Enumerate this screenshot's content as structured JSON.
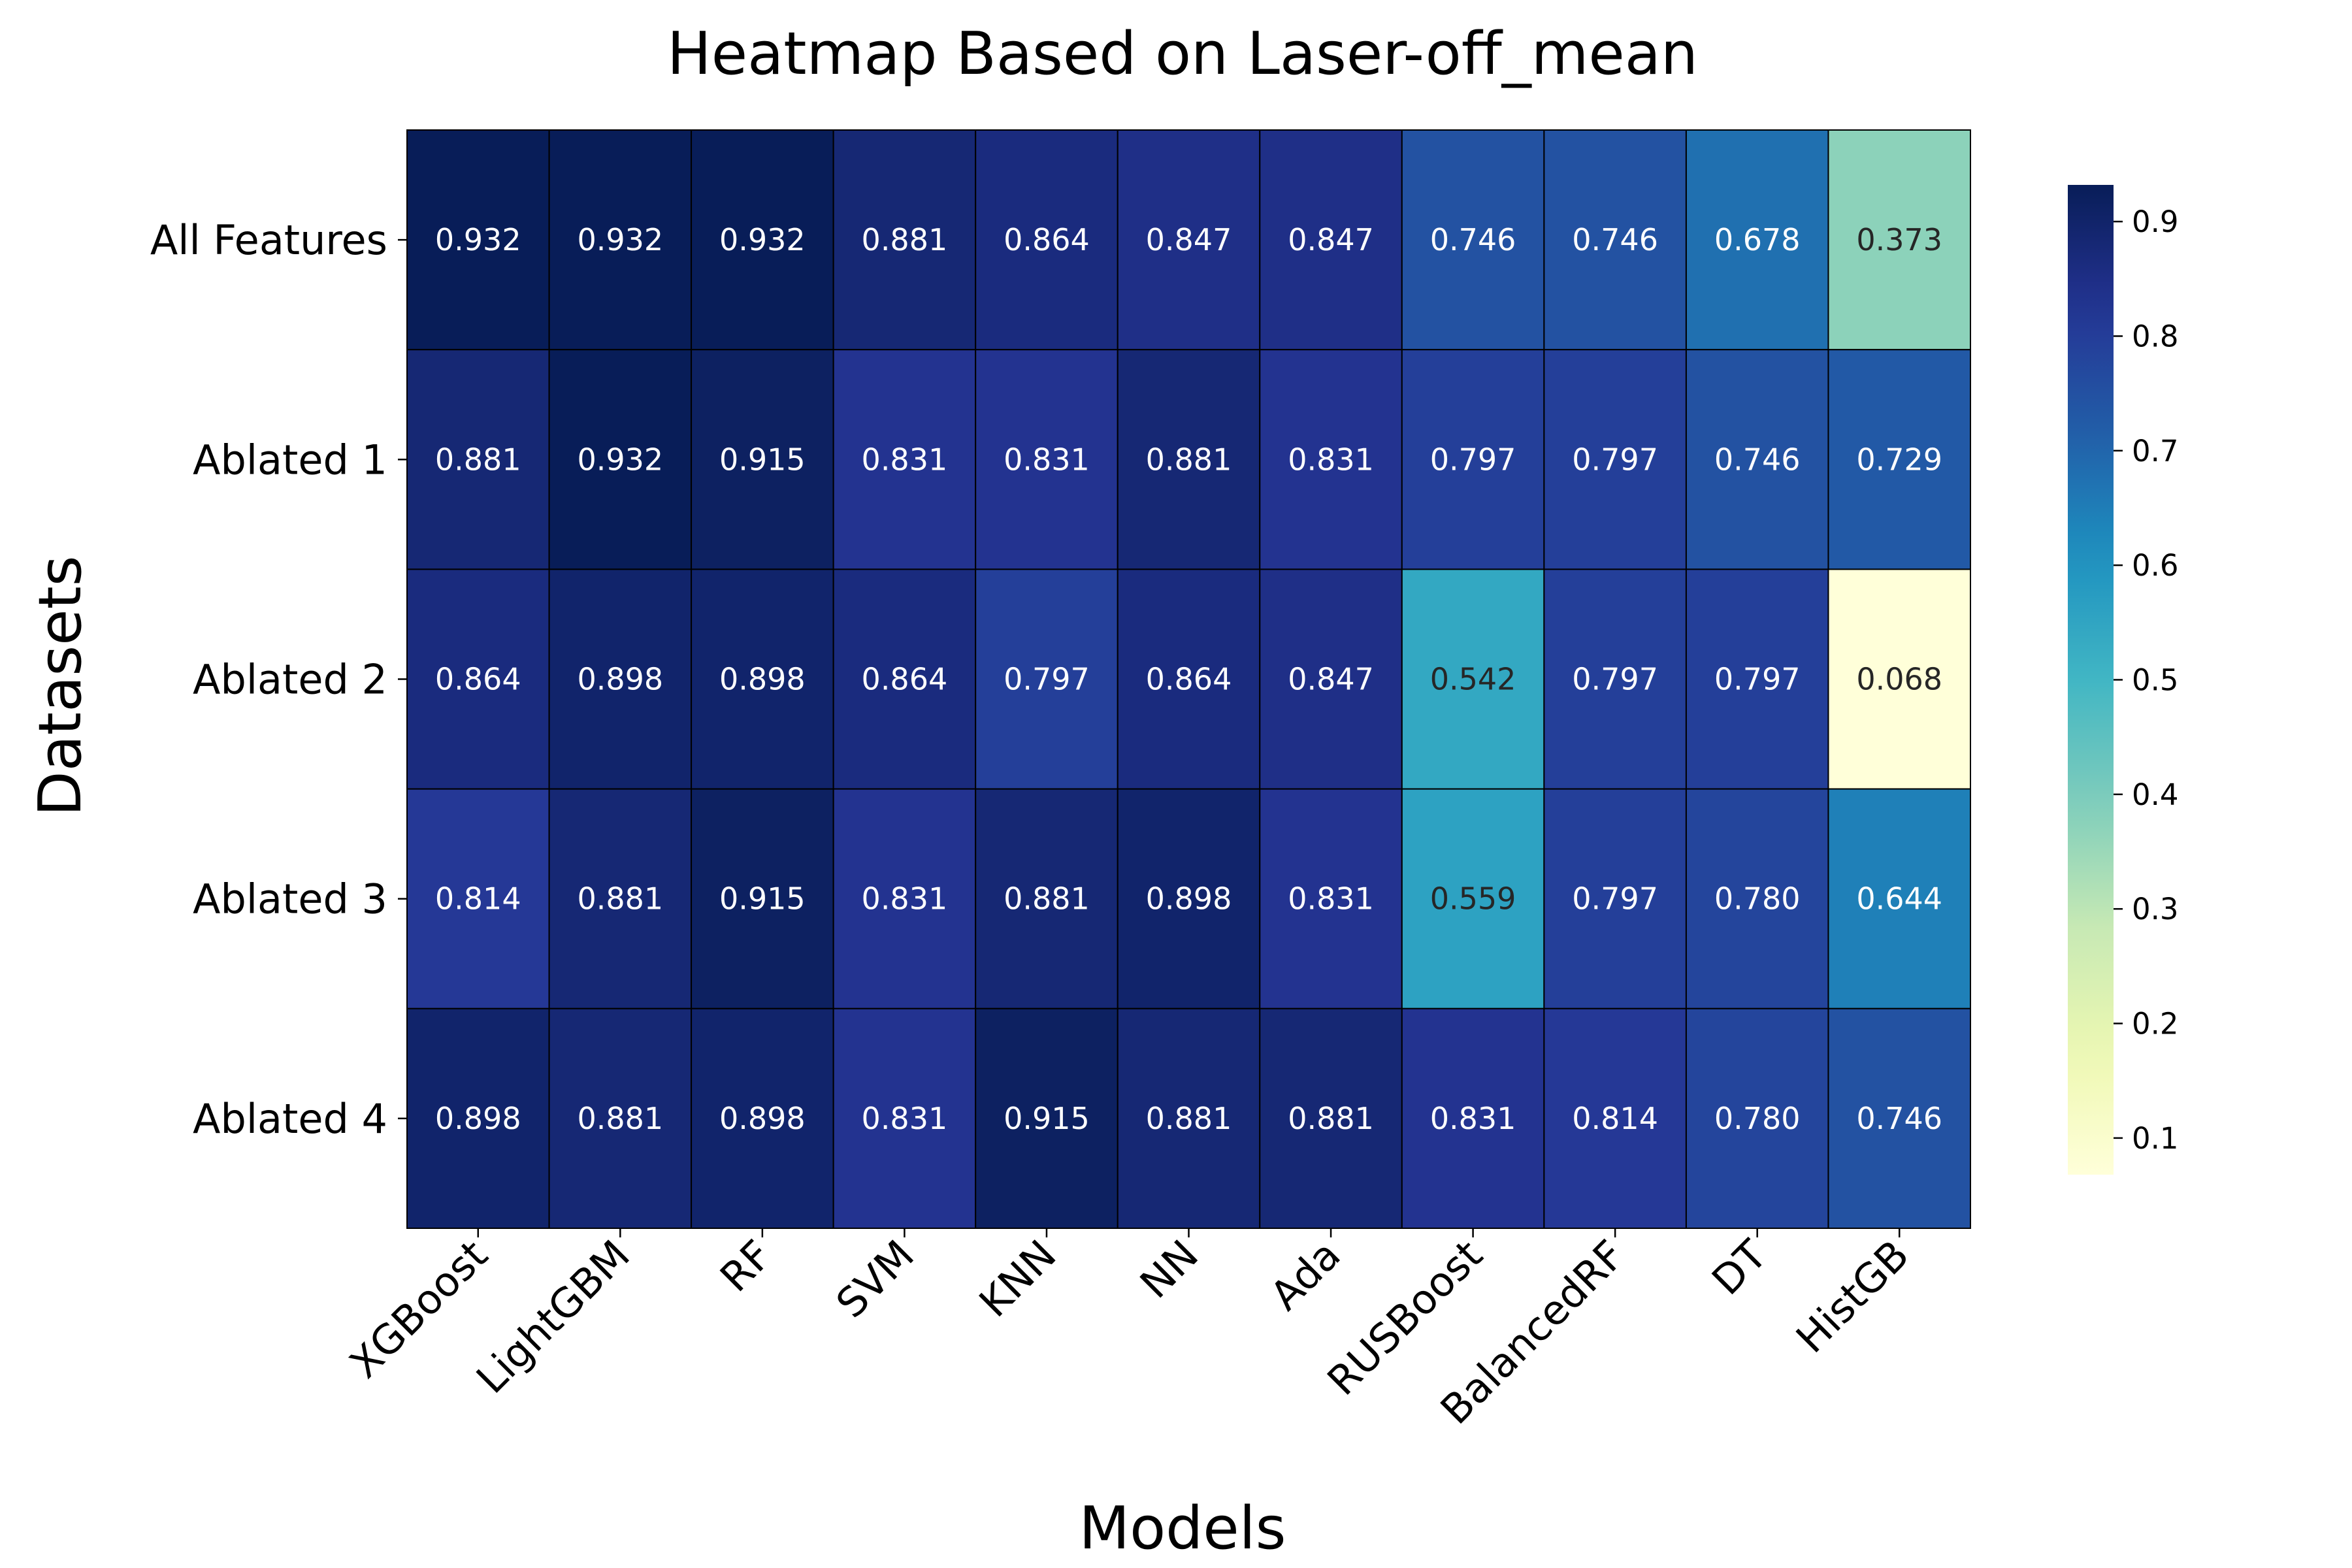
{
  "chart_data": {
    "type": "heatmap",
    "title": "Heatmap Based on Laser-off_mean",
    "xlabel": "Models",
    "ylabel": "Datasets",
    "columns": [
      "XGBoost",
      "LightGBM",
      "RF",
      "SVM",
      "KNN",
      "NN",
      "Ada",
      "RUSBoost",
      "BalancedRF",
      "DT",
      "HistGB"
    ],
    "rows": [
      "All Features",
      "Ablated 1",
      "Ablated 2",
      "Ablated 3",
      "Ablated 4"
    ],
    "values": [
      [
        0.932,
        0.932,
        0.932,
        0.881,
        0.864,
        0.847,
        0.847,
        0.746,
        0.746,
        0.678,
        0.373
      ],
      [
        0.881,
        0.932,
        0.915,
        0.831,
        0.831,
        0.881,
        0.831,
        0.797,
        0.797,
        0.746,
        0.729
      ],
      [
        0.864,
        0.898,
        0.898,
        0.864,
        0.797,
        0.864,
        0.847,
        0.542,
        0.797,
        0.797,
        0.068
      ],
      [
        0.814,
        0.881,
        0.915,
        0.831,
        0.881,
        0.898,
        0.831,
        0.559,
        0.797,
        0.78,
        0.644
      ],
      [
        0.898,
        0.881,
        0.898,
        0.831,
        0.915,
        0.881,
        0.881,
        0.831,
        0.814,
        0.78,
        0.746
      ]
    ],
    "value_format": "0.000",
    "colormap": "YlGnBu",
    "vmin": 0.068,
    "vmax": 0.932,
    "colorbar_ticks": [
      0.1,
      0.2,
      0.3,
      0.4,
      0.5,
      0.6,
      0.7,
      0.8,
      0.9
    ],
    "grid": false,
    "cell_border_color": "#000000"
  }
}
